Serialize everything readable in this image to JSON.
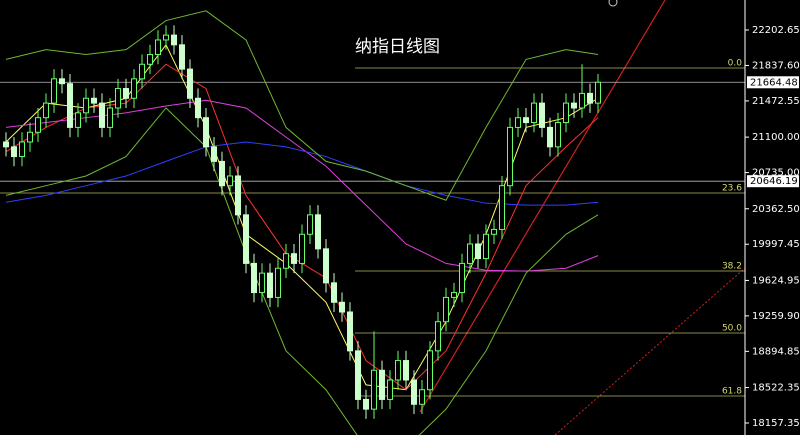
{
  "chart_data": {
    "type": "candlestick",
    "title": "纳指日线图",
    "ylim": [
      18033.8,
      22511.4
    ],
    "yticks": [
      22202.65,
      {
        "value": 21837.6,
        "label": "21837.60"
      },
      21472.55,
      {
        "value": 21100,
        "label": "21100.00"
      },
      {
        "value": 20735,
        "label": "20735.00"
      },
      {
        "value": 20362.5,
        "label": "20362.50"
      },
      19997.45,
      19624.95,
      {
        "value": 19259.9,
        "label": "19259.90"
      },
      18894.85,
      18522.35,
      18157.35
    ],
    "up_color": "#66ff66",
    "down_color": "#ccffcc",
    "candles": [
      [
        21050,
        21150,
        20900,
        21000
      ],
      [
        21000,
        21100,
        20800,
        20900
      ],
      [
        20900,
        21150,
        20800,
        21050
      ],
      [
        21050,
        21250,
        20950,
        21150
      ],
      [
        21150,
        21400,
        21050,
        21300
      ],
      [
        21300,
        21550,
        21200,
        21450
      ],
      [
        21450,
        21800,
        21350,
        21700
      ],
      [
        21700,
        21800,
        21550,
        21650
      ],
      [
        21650,
        21750,
        21100,
        21200
      ],
      [
        21200,
        21450,
        21100,
        21350
      ],
      [
        21350,
        21600,
        21250,
        21500
      ],
      [
        21500,
        21600,
        21350,
        21450
      ],
      [
        21450,
        21550,
        21100,
        21200
      ],
      [
        21200,
        21500,
        21100,
        21400
      ],
      [
        21400,
        21700,
        21300,
        21600
      ],
      [
        21600,
        21700,
        21400,
        21500
      ],
      [
        21500,
        21800,
        21400,
        21700
      ],
      [
        21700,
        21950,
        21600,
        21850
      ],
      [
        21850,
        22050,
        21750,
        21950
      ],
      [
        21950,
        22200,
        21850,
        22100
      ],
      [
        22100,
        22250,
        22000,
        22150
      ],
      [
        22150,
        22250,
        21950,
        22050
      ],
      [
        22050,
        22150,
        21700,
        21800
      ],
      [
        21800,
        21900,
        21400,
        21500
      ],
      [
        21500,
        21600,
        21200,
        21300
      ],
      [
        21300,
        21400,
        20900,
        21000
      ],
      [
        21000,
        21100,
        20750,
        20850
      ],
      [
        20850,
        20950,
        20500,
        20600
      ],
      [
        20600,
        20800,
        20500,
        20700
      ],
      [
        20700,
        20800,
        20200,
        20300
      ],
      [
        20300,
        20400,
        19700,
        19800
      ],
      [
        19800,
        19900,
        19400,
        19500
      ],
      [
        19500,
        19800,
        19400,
        19700
      ],
      [
        19700,
        19800,
        19350,
        19450
      ],
      [
        19450,
        19850,
        19350,
        19750
      ],
      [
        19750,
        20000,
        19650,
        19900
      ],
      [
        19900,
        20000,
        19700,
        19800
      ],
      [
        19800,
        20200,
        19700,
        20100
      ],
      [
        20100,
        20400,
        20000,
        20300
      ],
      [
        20300,
        20400,
        19850,
        19950
      ],
      [
        19950,
        20050,
        19500,
        19600
      ],
      [
        19600,
        19700,
        19300,
        19400
      ],
      [
        19400,
        19500,
        19200,
        19300
      ],
      [
        19300,
        19400,
        18800,
        18900
      ],
      [
        18900,
        19000,
        18300,
        18400
      ],
      [
        18400,
        18500,
        18200,
        18300
      ],
      [
        18300,
        19100,
        18200,
        18700
      ],
      [
        18700,
        18800,
        18300,
        18400
      ],
      [
        18400,
        18700,
        18300,
        18600
      ],
      [
        18600,
        18900,
        18500,
        18800
      ],
      [
        18800,
        18900,
        18500,
        18600
      ],
      [
        18600,
        18700,
        18250,
        18350
      ],
      [
        18350,
        18600,
        18250,
        18500
      ],
      [
        18500,
        19000,
        18400,
        18900
      ],
      [
        18900,
        19300,
        18800,
        19200
      ],
      [
        19200,
        19550,
        19100,
        19450
      ],
      [
        19450,
        19600,
        19350,
        19500
      ],
      [
        19500,
        19900,
        19400,
        19800
      ],
      [
        19800,
        20100,
        19700,
        20000
      ],
      [
        20000,
        20100,
        19750,
        19850
      ],
      [
        19850,
        20200,
        19750,
        20100
      ],
      [
        20100,
        20250,
        20000,
        20150
      ],
      [
        20150,
        20700,
        20050,
        20600
      ],
      [
        20600,
        21300,
        20500,
        21200
      ],
      [
        21200,
        21400,
        21100,
        21300
      ],
      [
        21300,
        21400,
        21150,
        21250
      ],
      [
        21250,
        21550,
        21150,
        21450
      ],
      [
        21450,
        21550,
        21100,
        21200
      ],
      [
        21200,
        21300,
        20900,
        21000
      ],
      [
        21000,
        21350,
        20900,
        21250
      ],
      [
        21250,
        21550,
        21150,
        21450
      ],
      [
        21450,
        21550,
        21300,
        21400
      ],
      [
        21400,
        21850,
        21300,
        21550
      ],
      [
        21550,
        21650,
        21350,
        21450
      ],
      [
        21450,
        21750,
        21350,
        21664.48
      ]
    ],
    "line_x": [
      0,
      5,
      10,
      15,
      20,
      25,
      30,
      35,
      40,
      45,
      50,
      55,
      60,
      65,
      70,
      74
    ],
    "lines": [
      {
        "color": "#ffff66",
        "values": [
          21050,
          21450,
          21400,
          21500,
          22050,
          21200,
          20100,
          19800,
          19400,
          18550,
          18500,
          19200,
          20100,
          21200,
          21300,
          21500
        ]
      },
      {
        "color": "#ff3030",
        "values": [
          20950,
          21200,
          21400,
          21450,
          21850,
          21600,
          20500,
          19900,
          19650,
          18800,
          18500,
          18900,
          19700,
          20600,
          21000,
          21300
        ]
      },
      {
        "color": "#e040e0",
        "values": [
          21200,
          21250,
          21300,
          21350,
          21420,
          21480,
          21400,
          21100,
          20800,
          20400,
          20000,
          19800,
          19730,
          19720,
          19750,
          19880
        ]
      },
      {
        "color": "#3040ff",
        "values": [
          20430,
          20500,
          20600,
          20700,
          20850,
          21000,
          21050,
          21000,
          20900,
          20750,
          20600,
          20500,
          20420,
          20400,
          20400,
          20430
        ]
      },
      {
        "color": "#70b830",
        "values": [
          21900,
          22000,
          21950,
          22000,
          22300,
          22400,
          22100,
          21200,
          20850,
          20750,
          20600,
          20450,
          21200,
          21900,
          22000,
          21950
        ]
      },
      {
        "color": "#70b830",
        "values": [
          20500,
          20600,
          20700,
          20900,
          21400,
          21000,
          19900,
          18900,
          18500,
          17900,
          17900,
          18300,
          18900,
          19700,
          20100,
          20300
        ]
      }
    ],
    "fib_levels": [
      {
        "label": "0.0",
        "value": 21811.5
      },
      {
        "label": "23.6",
        "value": 20524.9
      },
      {
        "label": "38.2",
        "value": 19722
      },
      {
        "label": "50.0",
        "value": 19083.8
      },
      {
        "label": "61.8",
        "value": 18435.4
      }
    ],
    "price_markers": [
      21664.48,
      20646.19
    ]
  }
}
